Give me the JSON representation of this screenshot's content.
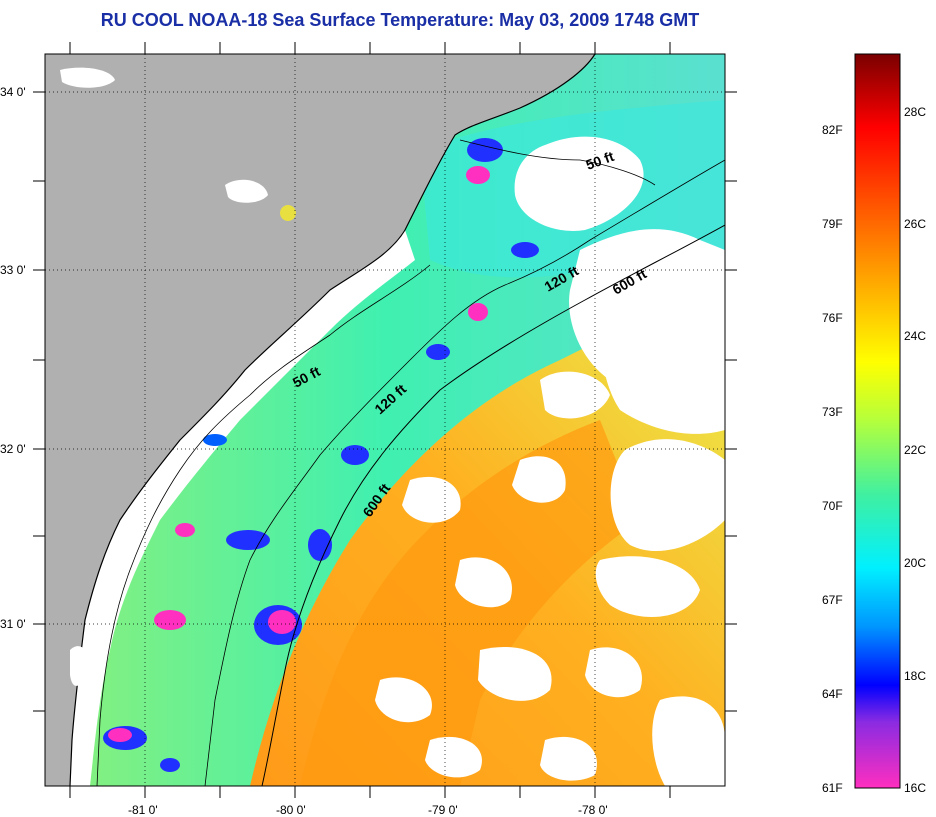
{
  "title": "RU COOL  NOAA-18  Sea Surface Temperature:  May 03, 2009 1748 GMT",
  "map": {
    "lon_labels": [
      "-81 0'",
      "-80 0'",
      "-79 0'",
      "-78 0'"
    ],
    "lat_labels": [
      "34 0'",
      "33 0'",
      "32 0'",
      "31 0'"
    ],
    "contours": [
      {
        "label": "50 ft",
        "count": 2
      },
      {
        "label": "120 ft",
        "count": 2
      },
      {
        "label": "600 ft",
        "count": 2
      }
    ],
    "colors": {
      "land": "#b0b0b0",
      "cloud": "#ffffff",
      "coast": "#000000"
    }
  },
  "colorbar": {
    "f_labels": [
      "82F",
      "79F",
      "76F",
      "73F",
      "70F",
      "67F",
      "64F",
      "61F"
    ],
    "c_labels": [
      "28C",
      "26C",
      "24C",
      "22C",
      "20C",
      "18C",
      "16C"
    ],
    "range_c": [
      16,
      29
    ],
    "colors": [
      "#ff2fbf",
      "#8a2be2",
      "#0000ff",
      "#0096ff",
      "#00f0ff",
      "#40f0a0",
      "#b4ff3c",
      "#ffff00",
      "#ffa000",
      "#ff5000",
      "#ff0000",
      "#7a0000"
    ]
  }
}
